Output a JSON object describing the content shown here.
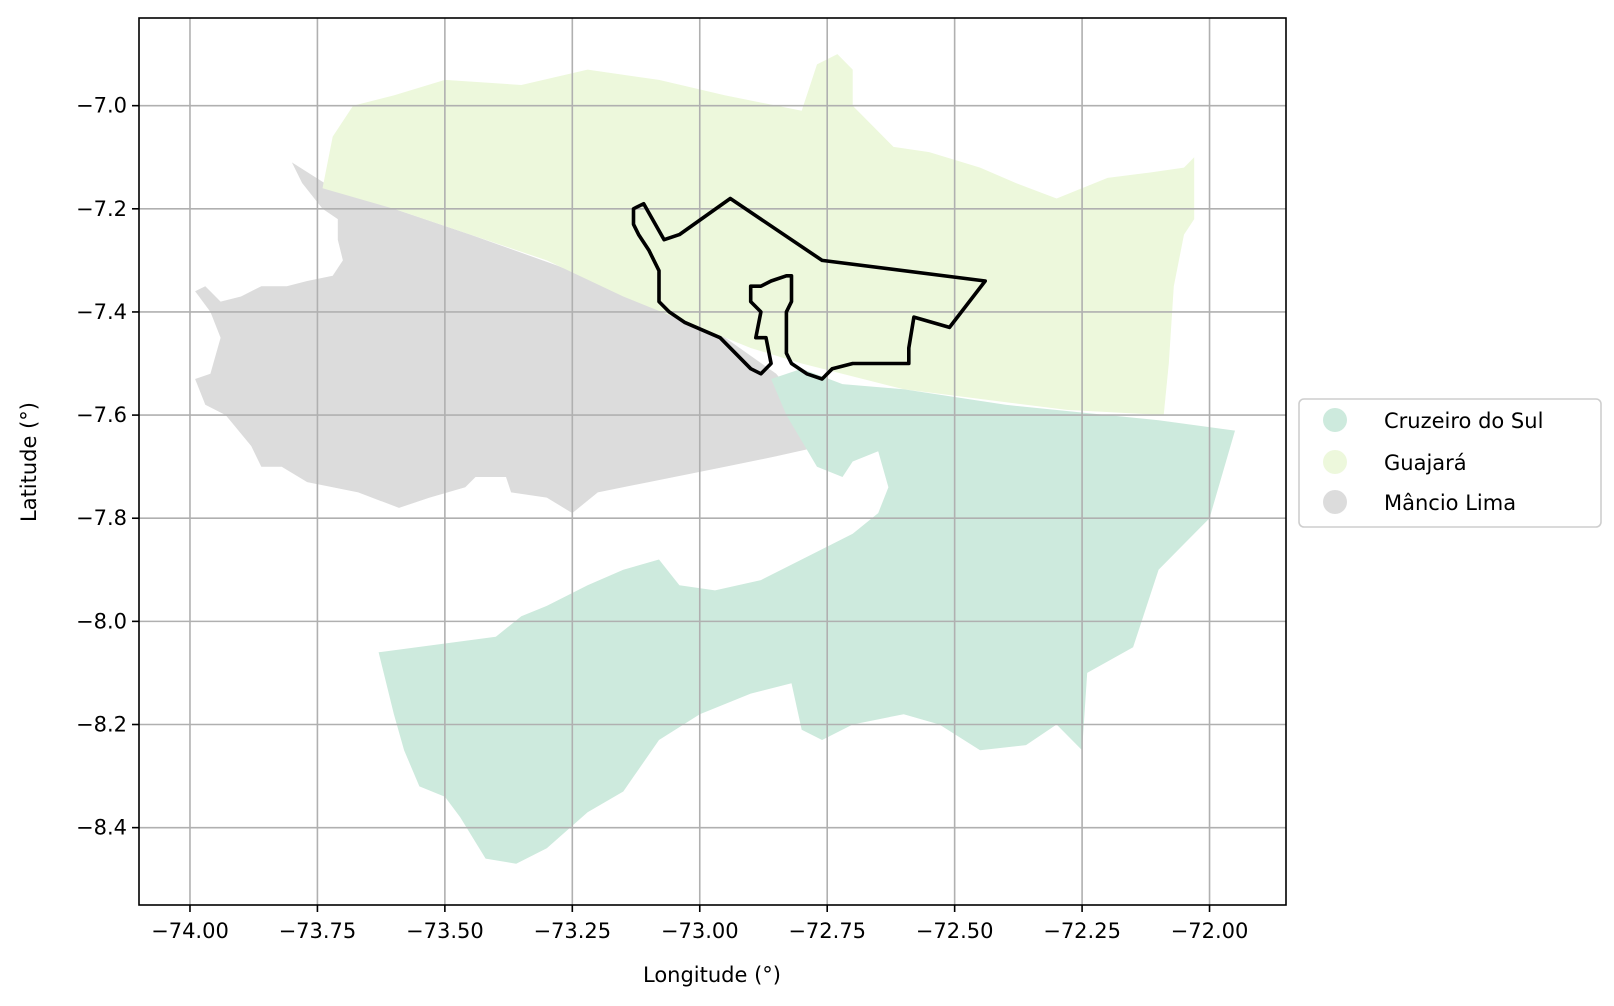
{
  "chart_data": {
    "type": "choropleth-map",
    "xlabel": "Longitude (°)",
    "ylabel": "Latitude (°)",
    "xlim": [
      -74.1,
      -71.85
    ],
    "ylim": [
      -8.55,
      -6.83
    ],
    "grid": true,
    "x_ticks": [
      -74.0,
      -73.75,
      -73.5,
      -73.25,
      -73.0,
      -72.75,
      -72.5,
      -72.25,
      -72.0
    ],
    "x_tick_labels": [
      "−74.00",
      "−73.75",
      "−73.50",
      "−73.25",
      "−73.00",
      "−72.75",
      "−72.50",
      "−72.25",
      "−72.00"
    ],
    "y_ticks": [
      -7.0,
      -7.2,
      -7.4,
      -7.6,
      -7.8,
      -8.0,
      -8.2,
      -8.4
    ],
    "y_tick_labels": [
      "−7.0",
      "−7.2",
      "−7.4",
      "−7.6",
      "−7.8",
      "−8.0",
      "−8.2",
      "−8.4"
    ],
    "legend": {
      "position": "right-center",
      "entries": [
        {
          "label": "Cruzeiro do Sul",
          "color": "#cdeadd"
        },
        {
          "label": "Guajará",
          "color": "#edf8dc"
        },
        {
          "label": "Mâncio Lima",
          "color": "#dcdcdc"
        }
      ]
    },
    "regions": [
      {
        "name": "Mâncio Lima",
        "color": "#dcdcdc",
        "coords": [
          [
            -73.8,
            -7.11
          ],
          [
            -73.72,
            -7.16
          ],
          [
            -73.6,
            -7.2
          ],
          [
            -73.45,
            -7.25
          ],
          [
            -73.28,
            -7.31
          ],
          [
            -73.1,
            -7.38
          ],
          [
            -72.95,
            -7.45
          ],
          [
            -72.85,
            -7.52
          ],
          [
            -72.8,
            -7.58
          ],
          [
            -72.76,
            -7.66
          ],
          [
            -72.85,
            -7.68
          ],
          [
            -72.95,
            -7.7
          ],
          [
            -73.1,
            -7.73
          ],
          [
            -73.2,
            -7.75
          ],
          [
            -73.25,
            -7.79
          ],
          [
            -73.3,
            -7.76
          ],
          [
            -73.37,
            -7.75
          ],
          [
            -73.38,
            -7.72
          ],
          [
            -73.44,
            -7.72
          ],
          [
            -73.46,
            -7.74
          ],
          [
            -73.53,
            -7.76
          ],
          [
            -73.59,
            -7.78
          ],
          [
            -73.67,
            -7.75
          ],
          [
            -73.77,
            -7.73
          ],
          [
            -73.82,
            -7.7
          ],
          [
            -73.86,
            -7.7
          ],
          [
            -73.88,
            -7.66
          ],
          [
            -73.93,
            -7.6
          ],
          [
            -73.97,
            -7.58
          ],
          [
            -73.99,
            -7.53
          ],
          [
            -73.96,
            -7.52
          ],
          [
            -73.94,
            -7.45
          ],
          [
            -73.96,
            -7.4
          ],
          [
            -73.99,
            -7.36
          ],
          [
            -73.97,
            -7.35
          ],
          [
            -73.94,
            -7.38
          ],
          [
            -73.9,
            -7.37
          ],
          [
            -73.86,
            -7.35
          ],
          [
            -73.81,
            -7.35
          ],
          [
            -73.77,
            -7.34
          ],
          [
            -73.72,
            -7.33
          ],
          [
            -73.7,
            -7.3
          ],
          [
            -73.71,
            -7.26
          ],
          [
            -73.71,
            -7.22
          ],
          [
            -73.74,
            -7.2
          ],
          [
            -73.78,
            -7.15
          ]
        ]
      },
      {
        "name": "Guajará",
        "color": "#edf8dc",
        "coords": [
          [
            -73.74,
            -7.16
          ],
          [
            -73.72,
            -7.06
          ],
          [
            -73.68,
            -7.0
          ],
          [
            -73.6,
            -6.98
          ],
          [
            -73.5,
            -6.95
          ],
          [
            -73.35,
            -6.96
          ],
          [
            -73.22,
            -6.93
          ],
          [
            -73.08,
            -6.95
          ],
          [
            -72.95,
            -6.98
          ],
          [
            -72.8,
            -7.01
          ],
          [
            -72.77,
            -6.92
          ],
          [
            -72.73,
            -6.9
          ],
          [
            -72.7,
            -6.93
          ],
          [
            -72.7,
            -7.0
          ],
          [
            -72.62,
            -7.08
          ],
          [
            -72.55,
            -7.09
          ],
          [
            -72.45,
            -7.12
          ],
          [
            -72.38,
            -7.15
          ],
          [
            -72.3,
            -7.18
          ],
          [
            -72.2,
            -7.14
          ],
          [
            -72.12,
            -7.13
          ],
          [
            -72.05,
            -7.12
          ],
          [
            -72.03,
            -7.1
          ],
          [
            -72.03,
            -7.22
          ],
          [
            -72.05,
            -7.25
          ],
          [
            -72.07,
            -7.35
          ],
          [
            -72.08,
            -7.5
          ],
          [
            -72.09,
            -7.6
          ],
          [
            -72.28,
            -7.59
          ],
          [
            -72.6,
            -7.55
          ],
          [
            -72.8,
            -7.5
          ],
          [
            -72.9,
            -7.47
          ],
          [
            -73.0,
            -7.43
          ],
          [
            -73.15,
            -7.37
          ],
          [
            -73.3,
            -7.3
          ],
          [
            -73.45,
            -7.25
          ],
          [
            -73.6,
            -7.2
          ]
        ]
      },
      {
        "name": "Cruzeiro do Sul",
        "color": "#cdeadd",
        "coords": [
          [
            -73.63,
            -8.06
          ],
          [
            -73.4,
            -8.03
          ],
          [
            -73.35,
            -7.99
          ],
          [
            -73.3,
            -7.97
          ],
          [
            -73.22,
            -7.93
          ],
          [
            -73.15,
            -7.9
          ],
          [
            -73.08,
            -7.88
          ],
          [
            -73.04,
            -7.93
          ],
          [
            -72.97,
            -7.94
          ],
          [
            -72.88,
            -7.92
          ],
          [
            -72.8,
            -7.88
          ],
          [
            -72.7,
            -7.83
          ],
          [
            -72.65,
            -7.79
          ],
          [
            -72.63,
            -7.74
          ],
          [
            -72.65,
            -7.67
          ],
          [
            -72.7,
            -7.69
          ],
          [
            -72.72,
            -7.72
          ],
          [
            -72.77,
            -7.7
          ],
          [
            -72.8,
            -7.65
          ],
          [
            -72.83,
            -7.6
          ],
          [
            -72.86,
            -7.53
          ],
          [
            -72.8,
            -7.51
          ],
          [
            -72.72,
            -7.54
          ],
          [
            -72.6,
            -7.55
          ],
          [
            -72.4,
            -7.58
          ],
          [
            -72.2,
            -7.6
          ],
          [
            -72.1,
            -7.61
          ],
          [
            -71.95,
            -7.63
          ],
          [
            -72.0,
            -7.8
          ],
          [
            -72.05,
            -7.85
          ],
          [
            -72.1,
            -7.9
          ],
          [
            -72.15,
            -8.05
          ],
          [
            -72.24,
            -8.1
          ],
          [
            -72.25,
            -8.25
          ],
          [
            -72.3,
            -8.2
          ],
          [
            -72.36,
            -8.24
          ],
          [
            -72.45,
            -8.25
          ],
          [
            -72.53,
            -8.2
          ],
          [
            -72.6,
            -8.18
          ],
          [
            -72.7,
            -8.2
          ],
          [
            -72.76,
            -8.23
          ],
          [
            -72.8,
            -8.21
          ],
          [
            -72.82,
            -8.12
          ],
          [
            -72.9,
            -8.14
          ],
          [
            -73.0,
            -8.18
          ],
          [
            -73.08,
            -8.23
          ],
          [
            -73.15,
            -8.33
          ],
          [
            -73.22,
            -8.37
          ],
          [
            -73.3,
            -8.44
          ],
          [
            -73.36,
            -8.47
          ],
          [
            -73.42,
            -8.46
          ],
          [
            -73.47,
            -8.38
          ],
          [
            -73.5,
            -8.34
          ],
          [
            -73.55,
            -8.32
          ],
          [
            -73.58,
            -8.25
          ],
          [
            -73.6,
            -8.18
          ],
          [
            -73.62,
            -8.1
          ]
        ]
      }
    ],
    "highlight_outline": {
      "color": "#000000",
      "coords": [
        [
          -73.13,
          -7.2
        ],
        [
          -73.11,
          -7.19
        ],
        [
          -73.07,
          -7.26
        ],
        [
          -73.04,
          -7.25
        ],
        [
          -72.94,
          -7.18
        ],
        [
          -72.76,
          -7.3
        ],
        [
          -72.44,
          -7.34
        ],
        [
          -72.51,
          -7.43
        ],
        [
          -72.58,
          -7.41
        ],
        [
          -72.59,
          -7.47
        ],
        [
          -72.59,
          -7.5
        ],
        [
          -72.7,
          -7.5
        ],
        [
          -72.74,
          -7.51
        ],
        [
          -72.76,
          -7.53
        ],
        [
          -72.79,
          -7.52
        ],
        [
          -72.82,
          -7.5
        ],
        [
          -72.83,
          -7.48
        ],
        [
          -72.83,
          -7.4
        ],
        [
          -72.82,
          -7.38
        ],
        [
          -72.82,
          -7.33
        ],
        [
          -72.83,
          -7.33
        ],
        [
          -72.86,
          -7.34
        ],
        [
          -72.88,
          -7.35
        ],
        [
          -72.9,
          -7.35
        ],
        [
          -72.9,
          -7.38
        ],
        [
          -72.88,
          -7.4
        ],
        [
          -72.89,
          -7.45
        ],
        [
          -72.87,
          -7.45
        ],
        [
          -72.86,
          -7.5
        ],
        [
          -72.88,
          -7.52
        ],
        [
          -72.9,
          -7.51
        ],
        [
          -72.93,
          -7.48
        ],
        [
          -72.96,
          -7.45
        ],
        [
          -73.03,
          -7.42
        ],
        [
          -73.06,
          -7.4
        ],
        [
          -73.08,
          -7.38
        ],
        [
          -73.08,
          -7.32
        ],
        [
          -73.1,
          -7.28
        ],
        [
          -73.12,
          -7.25
        ],
        [
          -73.13,
          -7.23
        ]
      ]
    }
  }
}
